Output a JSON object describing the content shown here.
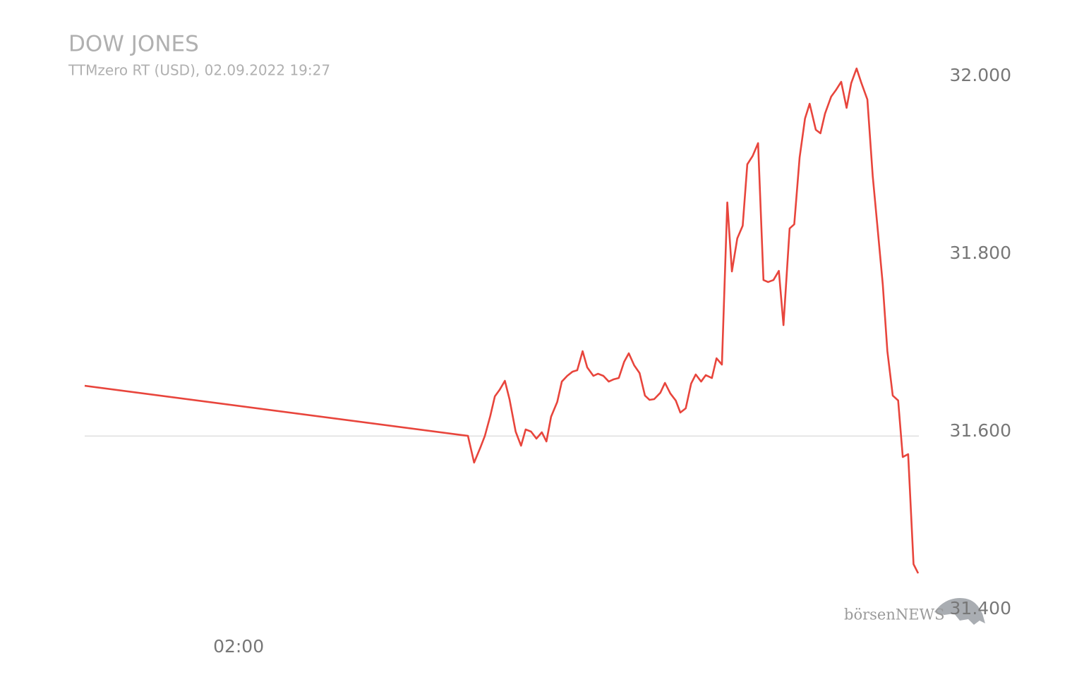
{
  "chart_data": {
    "type": "line",
    "title": "DOW JONES",
    "subtitle": "TTMzero RT (USD), 02.09.2022 19:27",
    "logo": "börsenNEWS",
    "x": [
      0,
      4.98,
      5.06,
      5.14,
      5.2,
      5.27,
      5.33,
      5.39,
      5.46,
      5.52,
      5.6,
      5.67,
      5.73,
      5.8,
      5.87,
      5.94,
      6.0,
      6.06,
      6.14,
      6.2,
      6.27,
      6.34,
      6.4,
      6.47,
      6.53,
      6.61,
      6.67,
      6.74,
      6.81,
      6.87,
      6.94,
      7.01,
      7.07,
      7.14,
      7.21,
      7.28,
      7.34,
      7.4,
      7.48,
      7.54,
      7.61,
      7.68,
      7.74,
      7.81,
      7.88,
      7.94,
      8.01,
      8.07,
      8.15,
      8.21,
      8.28,
      8.35,
      8.41,
      8.48,
      8.55,
      8.61,
      8.68,
      8.75,
      8.82,
      8.88,
      8.95,
      9.02,
      9.08,
      9.16,
      9.22,
      9.29,
      9.36,
      9.42,
      9.5,
      9.56,
      9.62,
      9.7,
      9.76,
      9.83,
      9.9,
      9.96,
      10.03,
      10.09,
      10.17,
      10.24,
      10.3,
      10.37,
      10.43,
      10.5,
      10.57,
      10.63,
      10.7,
      10.77,
      10.83
    ],
    "series": [
      {
        "name": "DOW JONES",
        "color": "#e8453c",
        "values": [
          31651.6,
          31595.2,
          31565.1,
          31581.7,
          31595.2,
          31617.5,
          31639.7,
          31646.8,
          31657.1,
          31636.5,
          31600,
          31584.1,
          31602.4,
          31600,
          31592.1,
          31599.2,
          31588.9,
          31616.7,
          31633.3,
          31656.3,
          31662.7,
          31667.5,
          31669,
          31690.5,
          31672.2,
          31662.7,
          31665.1,
          31662.7,
          31656.3,
          31658.7,
          31660.3,
          31678.6,
          31688.1,
          31674.6,
          31665.9,
          31640.5,
          31635.7,
          31636.5,
          31643.7,
          31654.8,
          31642.9,
          31635,
          31621.4,
          31626.2,
          31654,
          31664.3,
          31656.3,
          31663.5,
          31660.3,
          31682.5,
          31675.4,
          31857.9,
          31780.2,
          31817.5,
          31831.7,
          31900.8,
          31910.3,
          31924.6,
          31770.6,
          31768.3,
          31770.6,
          31780.9,
          31719.8,
          31828.6,
          31833.3,
          31908.7,
          31952.4,
          31969,
          31939.7,
          31935.7,
          31957.9,
          31977,
          31984.1,
          31993.7,
          31964.3,
          31992.1,
          32008.7,
          31992.9,
          31973.8,
          31887.3,
          31831.7,
          31765.9,
          31690.5,
          31640.5,
          31635,
          31571.4,
          31574.6,
          31450.8,
          31440.5
        ]
      }
    ],
    "xlim": [
      0,
      10.83
    ],
    "xticks": [
      {
        "value": 2,
        "label": "02:00"
      }
    ],
    "ylim": [
      31400,
      32020
    ],
    "yticks": [
      {
        "value": 31400,
        "label": "31.400"
      },
      {
        "value": 31600,
        "label": "31.600"
      },
      {
        "value": 31800,
        "label": "31.800"
      },
      {
        "value": 32000,
        "label": "32.000"
      }
    ],
    "reference_value": 31595,
    "reference_color": "#dddddd"
  }
}
